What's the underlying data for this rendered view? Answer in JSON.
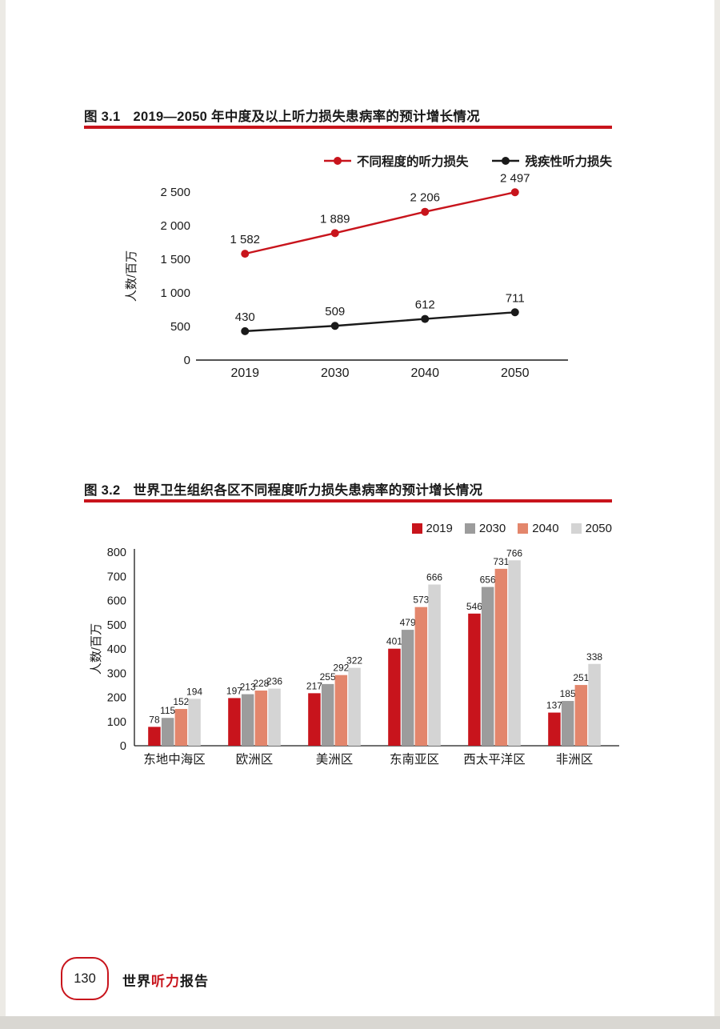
{
  "colors": {
    "accent_red": "#c8141c",
    "series_gray": "#9c9c9c",
    "series_salmon": "#e3866c",
    "series_lightgray": "#d4d4d4",
    "axis_black": "#1a1a1a"
  },
  "fig1": {
    "label": "图 3.1",
    "title": "2019—2050 年中度及以上听力损失患病率的预计增长情况"
  },
  "fig2": {
    "label": "图 3.2",
    "title": "世界卫生组织各区不同程度听力损失患病率的预计增长情况"
  },
  "footer": {
    "page_number": "130",
    "title_part1": "世界",
    "title_part2": "听力",
    "title_part3": "报告"
  },
  "chart_data": [
    {
      "type": "line",
      "title": "2019—2050 年中度及以上听力损失患病率的预计增长情况",
      "x": [
        "2019",
        "2030",
        "2040",
        "2050"
      ],
      "series": [
        {
          "name": "不同程度的听力损失",
          "color": "#c8141c",
          "values": [
            1582,
            1889,
            2206,
            2497
          ],
          "labels": [
            "1 582",
            "1 889",
            "2 206",
            "2 497"
          ]
        },
        {
          "name": "残疾性听力损失",
          "color": "#1a1a1a",
          "values": [
            430,
            509,
            612,
            711
          ],
          "labels": [
            "430",
            "509",
            "612",
            "711"
          ]
        }
      ],
      "xlabel": "",
      "ylabel": "人数/百万",
      "ylim": [
        0,
        2500
      ],
      "yticks": [
        0,
        500,
        1000,
        1500,
        2000,
        2500
      ],
      "ytick_labels": [
        "0",
        "500",
        "1 000",
        "1 500",
        "2 000",
        "2 500"
      ],
      "grid": false,
      "legend_position": "top"
    },
    {
      "type": "bar",
      "title": "世界卫生组织各区不同程度听力损失患病率的预计增长情况",
      "categories": [
        "东地中海区",
        "欧洲区",
        "美洲区",
        "东南亚区",
        "西太平洋区",
        "非洲区"
      ],
      "series": [
        {
          "name": "2019",
          "color": "#c8141c",
          "values": [
            78,
            197,
            217,
            401,
            546,
            137
          ]
        },
        {
          "name": "2030",
          "color": "#9c9c9c",
          "values": [
            115,
            213,
            255,
            479,
            656,
            185
          ]
        },
        {
          "name": "2040",
          "color": "#e3866c",
          "values": [
            152,
            228,
            292,
            573,
            731,
            251
          ]
        },
        {
          "name": "2050",
          "color": "#d4d4d4",
          "values": [
            194,
            236,
            322,
            666,
            766,
            338
          ]
        }
      ],
      "xlabel": "",
      "ylabel": "人数/百万",
      "ylim": [
        0,
        800
      ],
      "yticks": [
        0,
        100,
        200,
        300,
        400,
        500,
        600,
        700,
        800
      ],
      "grid": false,
      "legend_position": "top-right"
    }
  ]
}
